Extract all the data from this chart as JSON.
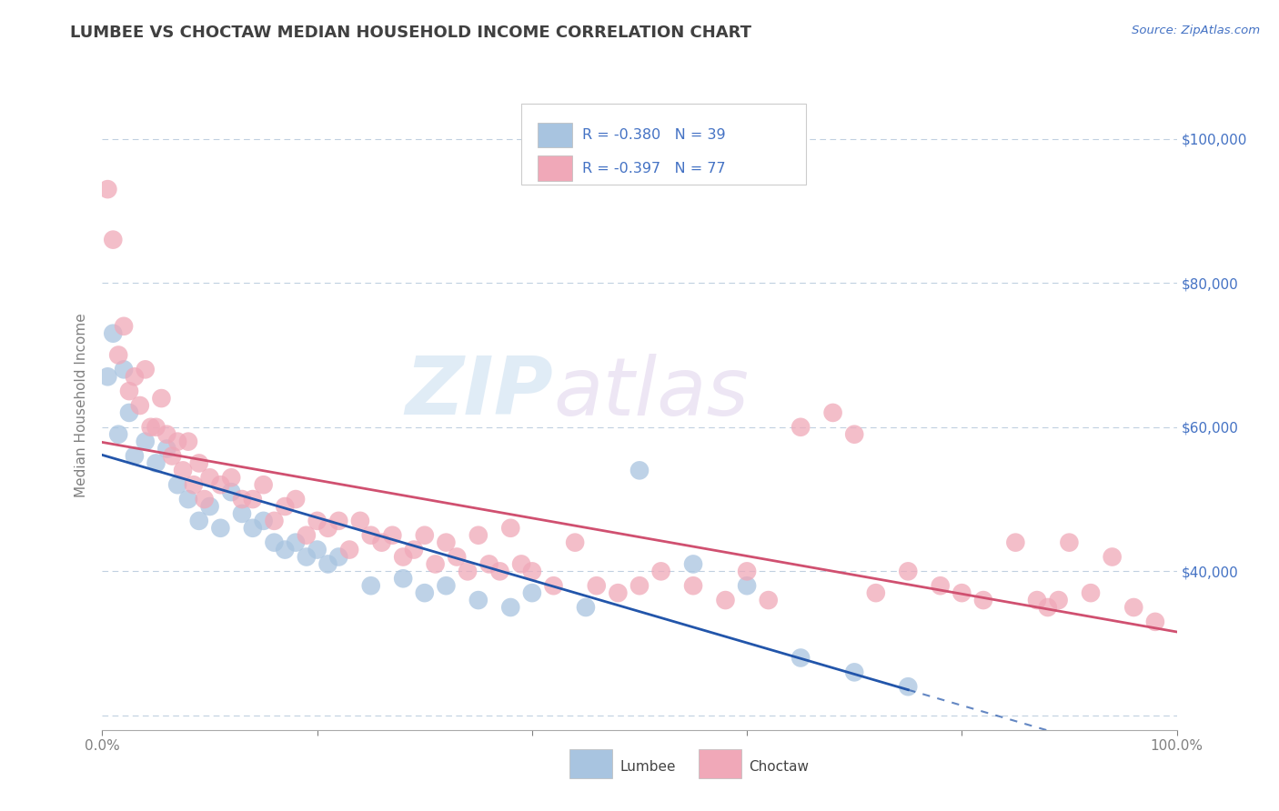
{
  "title": "LUMBEE VS CHOCTAW MEDIAN HOUSEHOLD INCOME CORRELATION CHART",
  "source_text": "Source: ZipAtlas.com",
  "ylabel": "Median Household Income",
  "xlabel": "",
  "xlim": [
    0.0,
    1.0
  ],
  "ylim": [
    18000,
    108000
  ],
  "yticks": [
    20000,
    40000,
    60000,
    80000,
    100000
  ],
  "ytick_labels_right": [
    "$100,000",
    "$80,000",
    "$60,000",
    "$40,000",
    ""
  ],
  "xticks": [
    0.0,
    0.2,
    0.4,
    0.6,
    0.8,
    1.0
  ],
  "xtick_labels": [
    "0.0%",
    "",
    "",
    "",
    "",
    "100.0%"
  ],
  "watermark_zip": "ZIP",
  "watermark_atlas": "atlas",
  "legend_r_lumbee": "R = -0.380",
  "legend_n_lumbee": "N = 39",
  "legend_r_choctaw": "R = -0.397",
  "legend_n_choctaw": "N = 77",
  "legend_label_lumbee": "Lumbee",
  "legend_label_choctaw": "Choctaw",
  "lumbee_color": "#a8c4e0",
  "choctaw_color": "#f0a8b8",
  "lumbee_line_color": "#2255aa",
  "choctaw_line_color": "#d05070",
  "title_color": "#404040",
  "axis_color": "#808080",
  "right_axis_color": "#4472c4",
  "grid_color": "#c0d0e0",
  "background_color": "#ffffff",
  "lumbee_scatter_x": [
    0.005,
    0.01,
    0.015,
    0.02,
    0.025,
    0.03,
    0.04,
    0.05,
    0.06,
    0.07,
    0.08,
    0.09,
    0.1,
    0.11,
    0.12,
    0.13,
    0.14,
    0.15,
    0.16,
    0.17,
    0.18,
    0.19,
    0.2,
    0.21,
    0.22,
    0.25,
    0.28,
    0.3,
    0.32,
    0.35,
    0.38,
    0.4,
    0.45,
    0.5,
    0.55,
    0.6,
    0.65,
    0.7,
    0.75
  ],
  "lumbee_scatter_y": [
    67000,
    73000,
    59000,
    68000,
    62000,
    56000,
    58000,
    55000,
    57000,
    52000,
    50000,
    47000,
    49000,
    46000,
    51000,
    48000,
    46000,
    47000,
    44000,
    43000,
    44000,
    42000,
    43000,
    41000,
    42000,
    38000,
    39000,
    37000,
    38000,
    36000,
    35000,
    37000,
    35000,
    54000,
    41000,
    38000,
    28000,
    26000,
    24000
  ],
  "choctaw_scatter_x": [
    0.005,
    0.01,
    0.015,
    0.02,
    0.025,
    0.03,
    0.035,
    0.04,
    0.045,
    0.05,
    0.055,
    0.06,
    0.065,
    0.07,
    0.075,
    0.08,
    0.085,
    0.09,
    0.095,
    0.1,
    0.11,
    0.12,
    0.13,
    0.14,
    0.15,
    0.16,
    0.17,
    0.18,
    0.19,
    0.2,
    0.21,
    0.22,
    0.23,
    0.24,
    0.25,
    0.26,
    0.27,
    0.28,
    0.29,
    0.3,
    0.31,
    0.32,
    0.33,
    0.34,
    0.35,
    0.36,
    0.37,
    0.38,
    0.39,
    0.4,
    0.42,
    0.44,
    0.46,
    0.48,
    0.5,
    0.52,
    0.55,
    0.58,
    0.6,
    0.62,
    0.65,
    0.68,
    0.7,
    0.72,
    0.75,
    0.78,
    0.8,
    0.82,
    0.85,
    0.87,
    0.88,
    0.89,
    0.9,
    0.92,
    0.94,
    0.96,
    0.98
  ],
  "choctaw_scatter_y": [
    93000,
    86000,
    70000,
    74000,
    65000,
    67000,
    63000,
    68000,
    60000,
    60000,
    64000,
    59000,
    56000,
    58000,
    54000,
    58000,
    52000,
    55000,
    50000,
    53000,
    52000,
    53000,
    50000,
    50000,
    52000,
    47000,
    49000,
    50000,
    45000,
    47000,
    46000,
    47000,
    43000,
    47000,
    45000,
    44000,
    45000,
    42000,
    43000,
    45000,
    41000,
    44000,
    42000,
    40000,
    45000,
    41000,
    40000,
    46000,
    41000,
    40000,
    38000,
    44000,
    38000,
    37000,
    38000,
    40000,
    38000,
    36000,
    40000,
    36000,
    60000,
    62000,
    59000,
    37000,
    40000,
    38000,
    37000,
    36000,
    44000,
    36000,
    35000,
    36000,
    44000,
    37000,
    42000,
    35000,
    33000
  ]
}
